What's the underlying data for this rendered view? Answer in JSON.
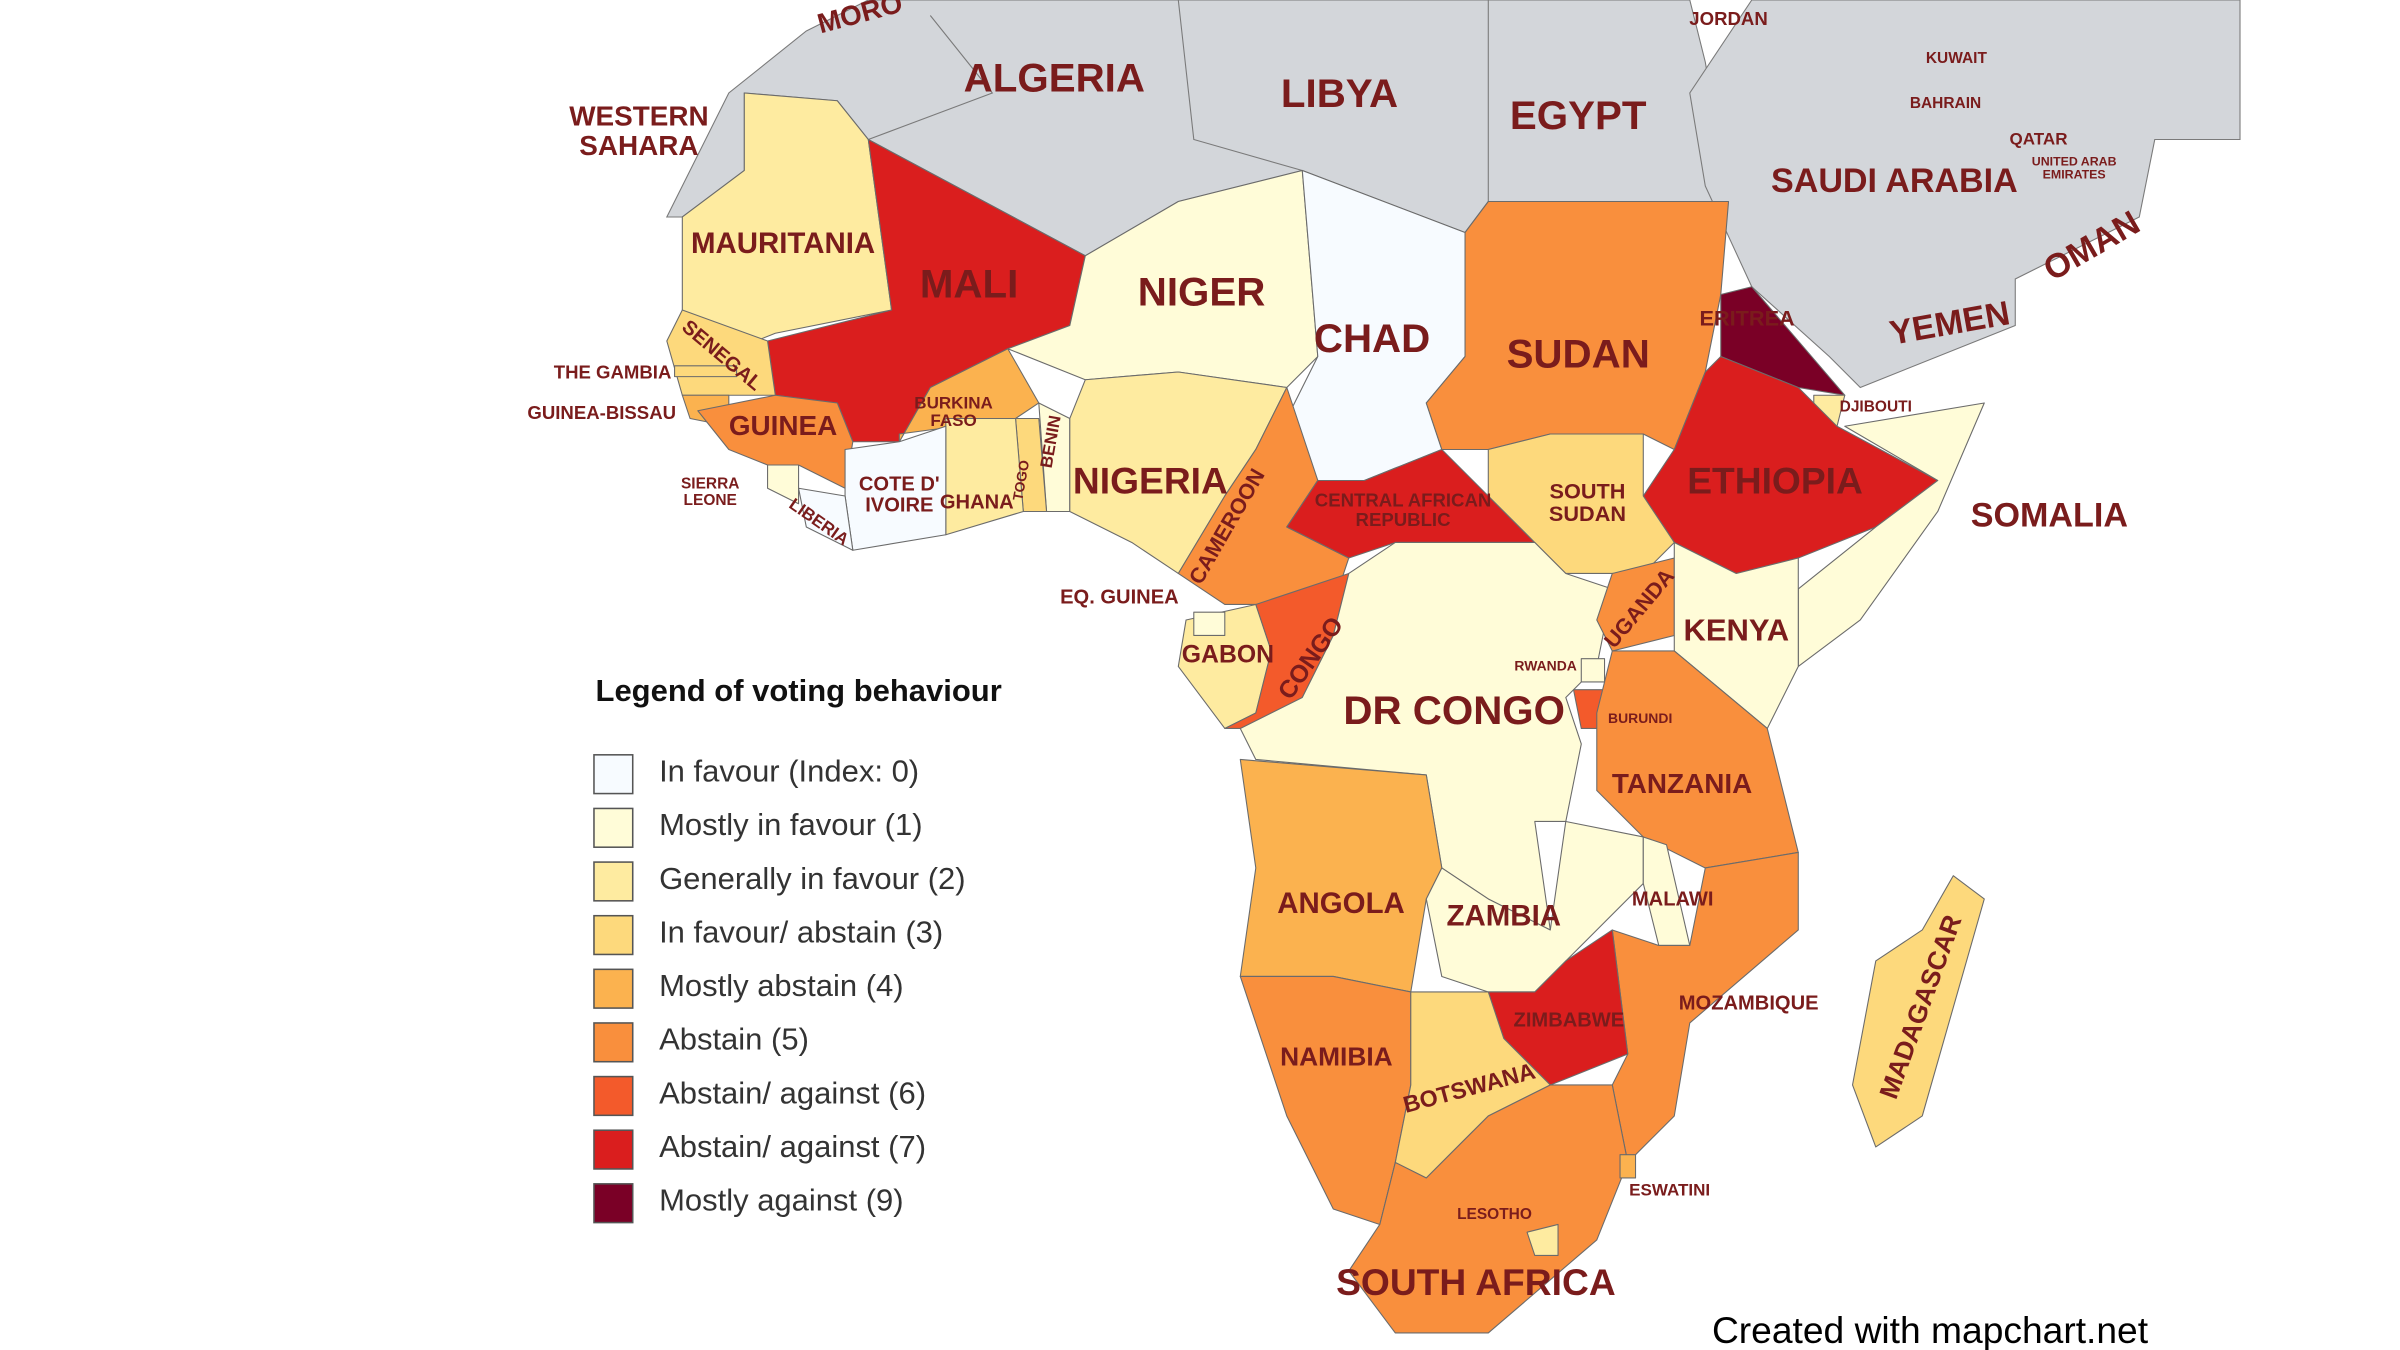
{
  "countries": [
    {
      "label": [
        "MORO"
      ],
      "legend_item": null
    },
    {
      "label": [
        "ALGERIA"
      ],
      "legend_item": null
    },
    {
      "label": [
        "LIBYA"
      ],
      "legend_item": null
    },
    {
      "label": [
        "EGYPT"
      ],
      "legend_item": null
    },
    {
      "label": [
        "JORDAN"
      ],
      "legend_item": null
    },
    {
      "label": [
        "KUWAIT"
      ],
      "legend_item": null
    },
    {
      "label": [
        "BAHRAIN"
      ],
      "legend_item": null
    },
    {
      "label": [
        "QATAR"
      ],
      "legend_item": null
    },
    {
      "label": [
        "UNITED ARAB",
        "EMIRATES"
      ],
      "legend_item": null
    },
    {
      "label": [
        "SAUDI ARABIA"
      ],
      "legend_item": null
    },
    {
      "label": [
        "OMAN"
      ],
      "legend_item": null
    },
    {
      "label": [
        "YEMEN"
      ],
      "legend_item": null
    },
    {
      "label": [
        "WESTERN",
        "SAHARA"
      ],
      "legend_item": null
    },
    {
      "label": [
        "MAURITANIA"
      ],
      "legend_item": 2
    },
    {
      "label": [
        "MALI"
      ],
      "legend_item": 7
    },
    {
      "label": [
        "NIGER"
      ],
      "legend_item": 1
    },
    {
      "label": [
        "CHAD"
      ],
      "legend_item": 0
    },
    {
      "label": [
        "SUDAN"
      ],
      "legend_item": 5
    },
    {
      "label": [
        "ERITREA"
      ],
      "legend_item": 8
    },
    {
      "label": [
        "DJIBOUTI"
      ],
      "legend_item": 2
    },
    {
      "label": [
        "ETHIOPIA"
      ],
      "legend_item": 7
    },
    {
      "label": [
        "SOMALIA"
      ],
      "legend_item": 1
    },
    {
      "label": [
        "SENEGAL"
      ],
      "legend_item": 3
    },
    {
      "label": [
        "THE GAMBIA"
      ],
      "legend_item": 3
    },
    {
      "label": [
        "GUINEA-BISSAU"
      ],
      "legend_item": 4
    },
    {
      "label": [
        "GUINEA"
      ],
      "legend_item": 5
    },
    {
      "label": [
        "BURKINA",
        "FASO"
      ],
      "legend_item": 4
    },
    {
      "label": [
        "BENIN"
      ],
      "legend_item": 1
    },
    {
      "label": [
        "TOGO"
      ],
      "legend_item": 3
    },
    {
      "label": [
        "GHANA"
      ],
      "legend_item": 2
    },
    {
      "label": [
        "NIGERIA"
      ],
      "legend_item": 2
    },
    {
      "label": [
        "COTE D'",
        "IVOIRE"
      ],
      "legend_item": 0
    },
    {
      "label": [
        "SIERRA",
        "LEONE"
      ],
      "legend_item": 1
    },
    {
      "label": [
        "LIBERIA"
      ],
      "legend_item": 0
    },
    {
      "label": [
        "CAMEROON"
      ],
      "legend_item": 5
    },
    {
      "label": [
        "CENTRAL AFRICAN",
        "REPUBLIC"
      ],
      "legend_item": 7
    },
    {
      "label": [
        "SOUTH",
        "SUDAN"
      ],
      "legend_item": 3
    },
    {
      "label": [
        "GABON"
      ],
      "legend_item": 2
    },
    {
      "label": [
        "EQ. GUINEA"
      ],
      "legend_item": 1
    },
    {
      "label": [
        "CONGO"
      ],
      "legend_item": 6
    },
    {
      "label": [
        "DR CONGO"
      ],
      "legend_item": 1
    },
    {
      "label": [
        "UGANDA"
      ],
      "legend_item": 5
    },
    {
      "label": [
        "KENYA"
      ],
      "legend_item": 1
    },
    {
      "label": [
        "RWANDA"
      ],
      "legend_item": 1
    },
    {
      "label": [
        "BURUNDI"
      ],
      "legend_item": 6
    },
    {
      "label": [
        "TANZANIA"
      ],
      "legend_item": 5
    },
    {
      "label": [
        "ANGOLA"
      ],
      "legend_item": 4
    },
    {
      "label": [
        "ZAMBIA"
      ],
      "legend_item": 1
    },
    {
      "label": [
        "MALAWI"
      ],
      "legend_item": 1
    },
    {
      "label": [
        "MOZAMBIQUE"
      ],
      "legend_item": 5
    },
    {
      "label": [
        "MADAGASCAR"
      ],
      "legend_item": 3
    },
    {
      "label": [
        "ZIMBABWE"
      ],
      "legend_item": 7
    },
    {
      "label": [
        "NAMIBIA"
      ],
      "legend_item": 5
    },
    {
      "label": [
        "BOTSWANA"
      ],
      "legend_item": 3
    },
    {
      "label": [
        "SOUTH AFRICA"
      ],
      "legend_item": 5
    },
    {
      "label": [
        "LESOTHO"
      ],
      "legend_item": 2
    },
    {
      "label": [
        "ESWATINI"
      ],
      "legend_item": 4
    }
  ],
  "legend": {
    "title": "Legend of voting behaviour",
    "items": [
      {
        "label": "In favour (Index: 0)",
        "color": "#f7fbff"
      },
      {
        "label": "Mostly in favour (1)",
        "color": "#fffcd8"
      },
      {
        "label": "Generally in favour (2)",
        "color": "#feeba0"
      },
      {
        "label": "In favour/ abstain (3)",
        "color": "#fdd97c"
      },
      {
        "label": "Mostly abstain (4)",
        "color": "#fbb24f"
      },
      {
        "label": "Abstain (5)",
        "color": "#f98f3d"
      },
      {
        "label": "Abstain/ against (6)",
        "color": "#f35a2b"
      },
      {
        "label": "Abstain/ against (7)",
        "color": "#da1e1e"
      },
      {
        "label": "Mostly against (9)",
        "color": "#7a0026"
      }
    ]
  },
  "credit": "Created with mapchart.net"
}
